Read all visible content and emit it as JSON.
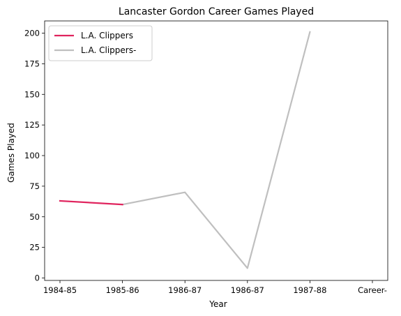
{
  "chart_data": {
    "type": "line",
    "title": "Lancaster Gordon Career Games Played",
    "xlabel": "Year",
    "ylabel": "Games Played",
    "categories": [
      "1984-85",
      "1985-86",
      "1986-87",
      "1986-87",
      "1987-88",
      "Career-"
    ],
    "ylim": [
      -2,
      210
    ],
    "yticks": [
      0,
      25,
      50,
      75,
      100,
      125,
      150,
      175,
      200
    ],
    "grid": false,
    "legend_position": "top-left",
    "series": [
      {
        "name": "L.A. Clippers",
        "color": "#e0245e",
        "x": [
          0,
          1
        ],
        "values": [
          63,
          60
        ]
      },
      {
        "name": "L.A. Clippers-",
        "color": "#bfbfbf",
        "x": [
          1,
          2,
          3,
          4
        ],
        "values": [
          60,
          70,
          8,
          201
        ]
      }
    ]
  }
}
